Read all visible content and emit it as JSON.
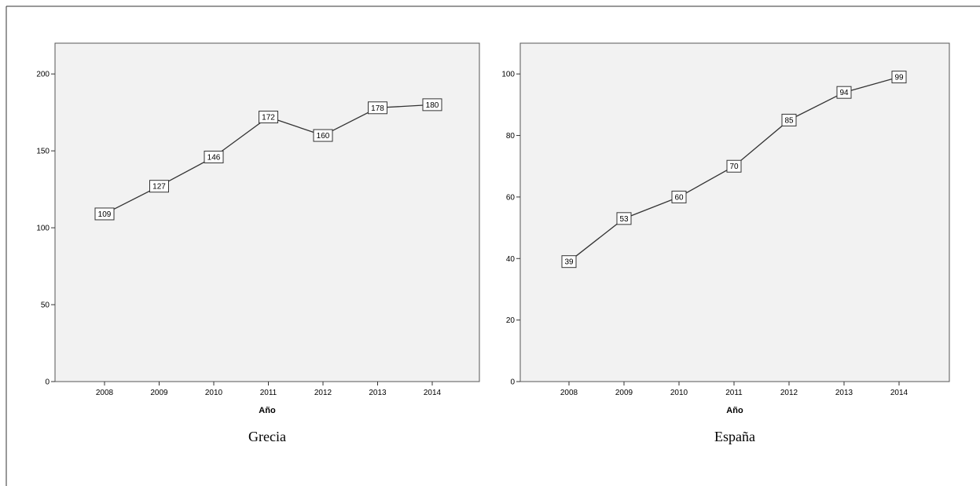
{
  "chart_data": [
    {
      "type": "line",
      "caption": "Grecia",
      "xlabel": "Año",
      "ylabel": "",
      "categories": [
        "2008",
        "2009",
        "2010",
        "2011",
        "2012",
        "2013",
        "2014"
      ],
      "values": [
        109,
        127,
        146,
        172,
        160,
        178,
        180
      ],
      "data_labels": [
        "109",
        "127",
        "146",
        "172",
        "160",
        "178",
        "180"
      ],
      "ylim": [
        0,
        220
      ],
      "yticks": [
        0,
        50,
        100,
        150,
        200
      ],
      "ytick_labels": [
        "0",
        "50",
        "100",
        "150",
        "200"
      ],
      "grid": false,
      "plot_background": "#f2f2f2",
      "line_color": "#333333"
    },
    {
      "type": "line",
      "caption": "España",
      "xlabel": "Año",
      "ylabel": "",
      "categories": [
        "2008",
        "2009",
        "2010",
        "2011",
        "2012",
        "2013",
        "2014"
      ],
      "values": [
        39,
        53,
        60,
        70,
        85,
        94,
        99
      ],
      "data_labels": [
        "39",
        "53",
        "60",
        "70",
        "85",
        "94",
        "99"
      ],
      "ylim": [
        0,
        110
      ],
      "yticks": [
        0,
        20,
        40,
        60,
        80,
        100
      ],
      "ytick_labels": [
        "0",
        "20",
        "40",
        "60",
        "80",
        "100"
      ],
      "grid": false,
      "plot_background": "#f2f2f2",
      "line_color": "#333333"
    }
  ]
}
